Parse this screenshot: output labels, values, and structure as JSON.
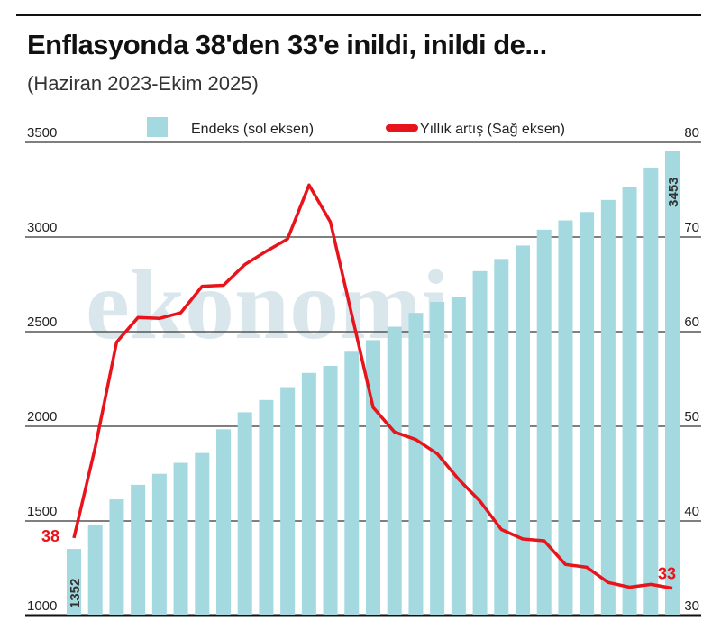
{
  "header": {
    "title": "Enflasyonda 38'den 33'e inildi, inildi de...",
    "subtitle": "(Haziran 2023-Ekim 2025)"
  },
  "watermark": "ekonomi",
  "chart_data": {
    "type": "bar+line",
    "title": "Enflasyonda 38'den 33'e inildi, inildi de...",
    "subtitle": "(Haziran 2023-Ekim 2025)",
    "legend_position": "top",
    "grid": true,
    "left_axis": {
      "ylim": [
        1000,
        3500
      ],
      "ticks": [
        "1000",
        "1500",
        "2000",
        "2500",
        "3000",
        "3500"
      ]
    },
    "right_axis": {
      "ylim": [
        30,
        80
      ],
      "ticks": [
        "30",
        "40",
        "50",
        "60",
        "70",
        "80"
      ]
    },
    "colors": {
      "bars": "#a3d9df",
      "line": "#e8141c"
    },
    "series": [
      {
        "name": "Endeks (sol eksen)",
        "type": "bar",
        "axis": "left",
        "values": [
          1352,
          1480,
          1614,
          1691,
          1749,
          1807,
          1859,
          1984,
          2074,
          2139,
          2207,
          2282,
          2319,
          2394,
          2455,
          2526,
          2599,
          2657,
          2685,
          2820,
          2884,
          2955,
          3039,
          3088,
          3132,
          3196,
          3262,
          3367,
          3453
        ]
      },
      {
        "name": "Yıllık artış (Sağ eksen)",
        "type": "line",
        "axis": "right",
        "values": [
          38.2,
          47.8,
          58.9,
          61.5,
          61.4,
          62.0,
          64.8,
          64.9,
          67.1,
          68.5,
          69.8,
          75.5,
          71.6,
          61.8,
          52.0,
          49.4,
          48.6,
          47.1,
          44.4,
          42.1,
          39.1,
          38.1,
          37.9,
          35.4,
          35.1,
          33.5,
          33.0,
          33.3,
          32.9
        ]
      }
    ],
    "data_labels": {
      "first_bar": "1352",
      "last_bar": "3453",
      "first_line": "38",
      "last_line": "33"
    }
  }
}
